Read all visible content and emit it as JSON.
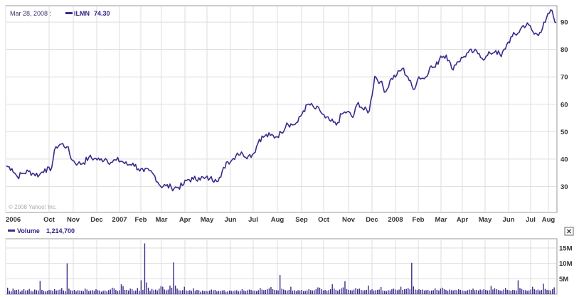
{
  "header": {
    "date": "Mar 28, 2008 :",
    "symbol": "ILMN",
    "value": "74.30"
  },
  "volume_header": {
    "label": "Volume",
    "value": "1,214,700"
  },
  "copyright": "© 2008 Yahoo! Inc.",
  "close_icon": "close-icon",
  "colors": {
    "line": "#3a2a8c",
    "grid": "#dddddd",
    "border": "#999999",
    "volume": "#3a2a8c"
  },
  "chart_data": [
    {
      "type": "line",
      "title": "",
      "series": [
        {
          "name": "ILMN"
        }
      ],
      "x_tick_labels": [
        "2006",
        "Oct",
        "Nov",
        "Dec",
        "2007",
        "Feb",
        "Mar",
        "Apr",
        "May",
        "Jun",
        "Jul",
        "Aug",
        "Sep",
        "Oct",
        "Nov",
        "Dec",
        "2008",
        "Feb",
        "Mar",
        "Apr",
        "May",
        "Jun",
        "Jul",
        "Aug"
      ],
      "y_ticks": [
        30,
        40,
        50,
        60,
        70,
        80,
        90
      ],
      "ylim": [
        20.5,
        96
      ],
      "x": [
        0,
        2,
        4,
        6,
        8,
        10,
        12,
        14,
        16,
        18,
        20,
        22,
        24,
        26,
        28,
        30,
        32,
        34,
        36,
        38,
        40,
        42,
        44,
        46,
        48,
        50,
        52,
        54,
        56,
        58,
        60,
        62,
        64,
        66,
        68,
        70,
        72,
        74,
        76,
        78,
        80,
        82,
        84,
        86,
        88,
        90,
        92,
        94,
        96,
        98,
        100,
        102,
        104,
        106,
        108,
        110,
        112,
        114,
        116,
        118,
        120,
        122,
        124,
        126,
        128,
        130,
        132,
        134,
        136,
        138,
        140,
        142,
        144,
        146,
        148,
        150,
        152,
        154,
        156,
        158,
        160,
        162,
        164,
        166,
        168,
        170,
        172,
        174,
        176,
        178,
        180,
        182,
        184,
        186,
        188,
        190,
        192,
        194,
        196,
        198,
        200
      ],
      "values": [
        37.5,
        36.5,
        33.5,
        34.8,
        35.5,
        34.6,
        34.2,
        36.4,
        35.7,
        44.5,
        45.5,
        44.5,
        39.5,
        38.3,
        38.6,
        40.6,
        40.2,
        39.6,
        40.2,
        38.8,
        39.6,
        39.2,
        37.8,
        38.5,
        36.4,
        35.4,
        35.7,
        33.8,
        30.2,
        30.3,
        29.6,
        29.6,
        30.3,
        32.5,
        32.6,
        33.2,
        32.9,
        32.9,
        32.6,
        33.4,
        38.9,
        39.6,
        42.2,
        41.8,
        41.1,
        42.1,
        47.2,
        48.4,
        48.6,
        48.1,
        49.6,
        53.2,
        52.4,
        53.5,
        57.6,
        60.1,
        58.6,
        57.8,
        55.0,
        53.8,
        52.4,
        56.4,
        57.3,
        55.2,
        60.7,
        57.9,
        57.6,
        70.2,
        68.2,
        64.6,
        69.4,
        70.7,
        73.1,
        70.0,
        65.4,
        70.0,
        69.3,
        73.4,
        73.5,
        77.6,
        78.0,
        73.0,
        75.5,
        77.0,
        78.9,
        79.2,
        78.5,
        76.5,
        78.6,
        79.6,
        77.4,
        81.8,
        84.8,
        85.9,
        88.8,
        89.0,
        85.6,
        86.2,
        89.9,
        94.5,
        89.8
      ]
    },
    {
      "type": "bar",
      "title": "",
      "series": [
        {
          "name": "Volume"
        }
      ],
      "y_ticks": [
        5,
        10,
        15
      ],
      "y_tick_labels": [
        "5M",
        "10M",
        "15M"
      ],
      "ylim": [
        0,
        18
      ],
      "units": "M",
      "values": [
        2.1,
        1.1,
        0.9,
        1.8,
        1.3,
        1.4,
        1.5,
        0.8,
        1.2,
        1.6,
        1.2,
        1.3,
        1.7,
        1.1,
        0.9,
        1.5,
        1.3,
        1.2,
        4.3,
        1.4,
        1.1,
        0.9,
        1.1,
        1.4,
        1.3,
        1.1,
        1.6,
        1.2,
        1.3,
        1.5,
        2.0,
        1.2,
        1.0,
        10.0,
        1.8,
        1.3,
        1.1,
        1.4,
        0.9,
        1.3,
        1.2,
        1.1,
        1.0,
        1.8,
        1.5,
        1.0,
        1.2,
        1.3,
        1.1,
        1.6,
        1.3,
        1.2,
        0.8,
        1.1,
        1.2,
        0.9,
        1.3,
        1.5,
        2.1,
        1.9,
        1.4,
        1.0,
        1.3,
        3.2,
        2.6,
        1.4,
        1.4,
        1.2,
        1.8,
        1.6,
        1.1,
        1.2,
        2.0,
        1.1,
        4.5,
        1.4,
        16.5,
        3.8,
        2.1,
        1.1,
        1.7,
        1.3,
        1.5,
        1.2,
        1.8,
        2.6,
        2.4,
        1.5,
        1.3,
        1.5,
        2.8,
        2.1,
        10.3,
        2.8,
        1.8,
        1.3,
        1.2,
        1.3,
        2.4,
        1.2,
        1.1,
        1.3,
        1.1,
        1.9,
        1.1,
        1.4,
        1.3,
        0.8,
        1.2,
        1.0,
        1.1,
        0.9,
        1.2,
        1.5,
        1.3,
        1.4,
        0.9,
        1.1,
        1.0,
        1.2,
        1.3,
        0.8,
        0.9,
        1.2,
        1.1,
        1.0,
        1.2,
        1.3,
        0.9,
        1.1,
        1.6,
        1.2,
        1.0,
        1.3,
        1.5,
        1.4,
        1.1,
        1.2,
        1.0,
        1.3,
        2.0,
        1.5,
        1.3,
        1.4,
        1.6,
        1.9,
        2.3,
        1.6,
        1.4,
        1.3,
        1.2,
        6.2,
        1.8,
        1.5,
        1.3,
        1.2,
        1.4,
        2.4,
        1.1,
        1.3,
        1.0,
        1.3,
        1.2,
        1.4,
        1.0,
        1.1,
        1.2,
        1.6,
        1.3,
        1.2,
        1.3,
        1.6,
        2.2,
        2.1,
        1.6,
        1.2,
        1.4,
        1.1,
        1.3,
        1.6,
        3.2,
        1.8,
        1.4,
        1.1,
        1.5,
        1.9,
        2.2,
        4.2,
        1.6,
        1.4,
        1.3,
        1.2,
        1.5,
        2.0,
        1.6,
        1.8,
        1.4,
        1.2,
        1.3,
        1.4,
        2.8,
        1.3,
        1.6,
        1.2,
        1.3,
        1.4,
        1.5,
        2.3,
        1.2,
        1.1,
        1.0,
        1.3,
        1.2,
        1.6,
        1.8,
        1.5,
        1.3,
        1.5,
        2.4,
        1.4,
        1.6,
        1.7,
        2.0,
        1.6,
        10.2,
        2.5,
        1.5,
        1.3,
        1.6,
        1.4,
        1.5,
        1.2,
        1.3,
        1.4,
        1.1,
        1.2,
        1.3,
        1.9,
        1.4,
        1.2,
        1.8,
        2.1,
        1.6,
        1.4,
        1.1,
        1.5,
        1.3,
        1.2,
        1.4,
        1.3,
        1.6,
        1.4,
        1.2,
        1.1,
        1.0,
        1.3,
        1.5,
        1.4,
        1.8,
        1.3,
        1.4,
        1.2,
        1.5,
        1.3,
        1.6,
        1.4,
        1.2,
        1.3,
        2.7,
        1.5,
        1.9,
        1.6,
        1.4,
        1.2,
        1.1,
        1.5,
        2.0,
        1.4,
        1.3,
        1.1,
        1.4,
        1.3,
        1.2,
        4.5,
        2.0,
        1.7,
        1.4,
        1.3,
        1.1,
        1.2,
        1.5,
        2.4,
        1.6,
        1.3,
        1.5,
        1.2,
        1.4,
        3.4,
        1.7,
        1.4,
        1.3,
        1.2,
        1.6,
        2.2
      ]
    }
  ]
}
